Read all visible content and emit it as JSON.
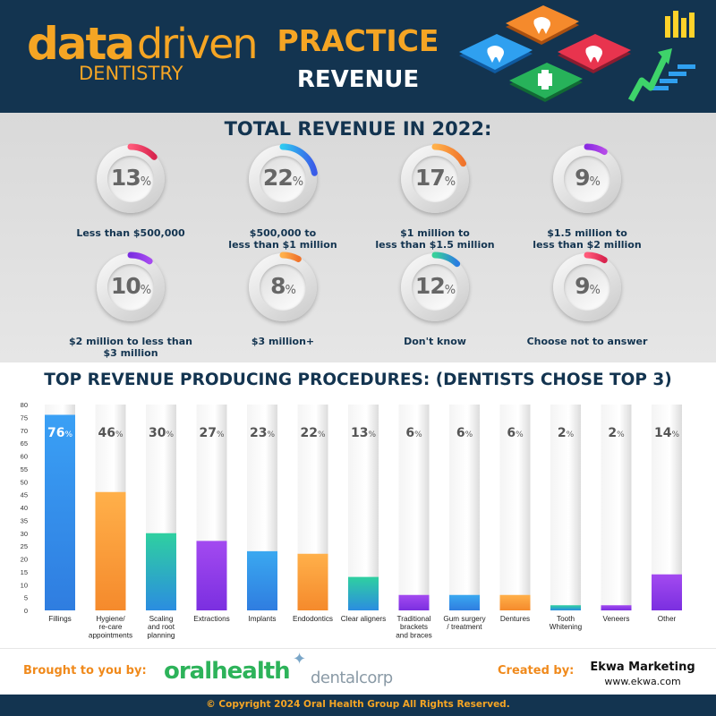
{
  "header": {
    "logo_data": "data",
    "logo_driven": "driven",
    "logo_sub": "DENTISTRY",
    "title": "PRACTICE",
    "subtitle": "REVENUE"
  },
  "revenue": {
    "title": "TOTAL REVENUE IN 2022:",
    "items": [
      {
        "value": 13,
        "label_lines": [
          "Less than $500,000"
        ],
        "color_from": "#ff5a7a",
        "color_to": "#d8244e"
      },
      {
        "value": 22,
        "label_lines": [
          "$500,000 to",
          "less than $1 million"
        ],
        "color_from": "#2ec8f0",
        "color_to": "#3a5be8"
      },
      {
        "value": 17,
        "label_lines": [
          "$1 million to",
          "less than $1.5 million"
        ],
        "color_from": "#ffb04a",
        "color_to": "#f0742c"
      },
      {
        "value": 9,
        "label_lines": [
          "$1.5 million to",
          "less than $2 million"
        ],
        "color_from": "#8a2be2",
        "color_to": "#b54ae8"
      },
      {
        "value": 10,
        "label_lines": [
          "$2 million to less than",
          "$3 million"
        ],
        "color_from": "#7b2fe0",
        "color_to": "#a64af0"
      },
      {
        "value": 8,
        "label_lines": [
          "$3 million+"
        ],
        "color_from": "#ffb04a",
        "color_to": "#f0742c"
      },
      {
        "value": 12,
        "label_lines": [
          "Don't know"
        ],
        "color_from": "#38d09a",
        "color_to": "#2a7de0"
      },
      {
        "value": 9,
        "label_lines": [
          "Choose not to answer"
        ],
        "color_from": "#ff5a7a",
        "color_to": "#d8244e"
      }
    ]
  },
  "procedures": {
    "title": "TOP REVENUE PRODUCING PROCEDURES: (DENTISTS CHOSE TOP 3)"
  },
  "chart_data": {
    "type": "bar",
    "title": "TOP REVENUE PRODUCING PROCEDURES: (DENTISTS CHOSE TOP 3)",
    "ylim": [
      0,
      80
    ],
    "yticks": [
      0,
      5,
      10,
      15,
      20,
      25,
      30,
      35,
      40,
      45,
      50,
      55,
      60,
      65,
      70,
      75,
      80
    ],
    "grid": false,
    "categories": [
      [
        "Fillings"
      ],
      [
        "Hygiene/",
        "re-care",
        "appointments"
      ],
      [
        "Scaling",
        "and root",
        "planning"
      ],
      [
        "Extractions"
      ],
      [
        "Implants"
      ],
      [
        "Endodontics"
      ],
      [
        "Clear aligners"
      ],
      [
        "Traditional",
        "brackets",
        "and braces"
      ],
      [
        "Gum surgery",
        "/ treatment"
      ],
      [
        "Dentures"
      ],
      [
        "Tooth",
        "Whitening"
      ],
      [
        "Veneers"
      ],
      [
        "Other"
      ]
    ],
    "values": [
      76,
      46,
      30,
      27,
      23,
      22,
      13,
      6,
      6,
      6,
      2,
      2,
      14
    ],
    "colors": [
      [
        "#3aa0f5",
        "#2f7de0"
      ],
      [
        "#ffb04a",
        "#f58a2c"
      ],
      [
        "#2fd0a0",
        "#2b8de0"
      ],
      [
        "#a34af0",
        "#7b2fe0"
      ],
      [
        "#3aa8f0",
        "#2f7de0"
      ],
      [
        "#ffb04a",
        "#f58a2c"
      ],
      [
        "#2fd0a0",
        "#2b8de0"
      ],
      [
        "#a34af0",
        "#7b2fe0"
      ],
      [
        "#3aa8f0",
        "#2f7de0"
      ],
      [
        "#ffb04a",
        "#f58a2c"
      ],
      [
        "#2fd0a0",
        "#2b8de0"
      ],
      [
        "#a34af0",
        "#7b2fe0"
      ],
      [
        "#a34af0",
        "#7b2fe0"
      ]
    ]
  },
  "footer": {
    "brought_by": "Brought to you by:",
    "oralhealth": "oralhealth",
    "dentalcorp": "dentalcorp",
    "created_by": "Created by:",
    "ekwa": "Ekwa Marketing",
    "ekwa_url": "www.ekwa.com",
    "copyright": "© Copyright 2024 Oral Health Group All Rights Reserved."
  }
}
